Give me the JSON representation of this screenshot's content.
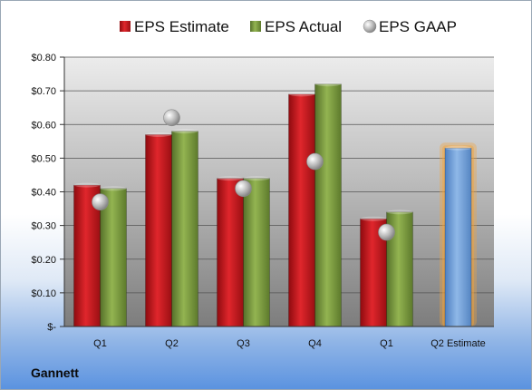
{
  "company": "Gannett",
  "chart_data": {
    "type": "bar",
    "categories": [
      "Q1",
      "Q2",
      "Q3",
      "Q4",
      "Q1",
      "Q2 Estimate"
    ],
    "series": [
      {
        "name": "EPS Estimate",
        "type": "bar",
        "color": "#c8161d",
        "values": [
          0.42,
          0.57,
          0.44,
          0.69,
          0.32,
          null
        ]
      },
      {
        "name": "EPS Actual",
        "type": "bar",
        "color": "#7a9a3a",
        "values": [
          0.41,
          0.58,
          0.44,
          0.72,
          0.34,
          null
        ]
      },
      {
        "name": "EPS GAAP",
        "type": "scatter",
        "color": "#a9a9a9",
        "values": [
          0.37,
          0.62,
          0.41,
          0.49,
          0.28,
          null
        ]
      },
      {
        "name": "Q2 Estimate",
        "type": "bar",
        "color": "#6f9fd8",
        "highlight": "#f4a33a",
        "values": [
          null,
          null,
          null,
          null,
          null,
          0.53
        ]
      }
    ],
    "ylim": [
      0,
      0.8
    ],
    "yticks": [
      0,
      0.1,
      0.2,
      0.3,
      0.4,
      0.5,
      0.6,
      0.7,
      0.8
    ],
    "ytick_labels": [
      "$-",
      "$0.10",
      "$0.20",
      "$0.30",
      "$0.40",
      "$0.50",
      "$0.60",
      "$0.70",
      "$0.80"
    ],
    "legend": {
      "position": "top",
      "items": [
        "EPS Estimate",
        "EPS Actual",
        "EPS GAAP"
      ]
    },
    "grid": true
  }
}
